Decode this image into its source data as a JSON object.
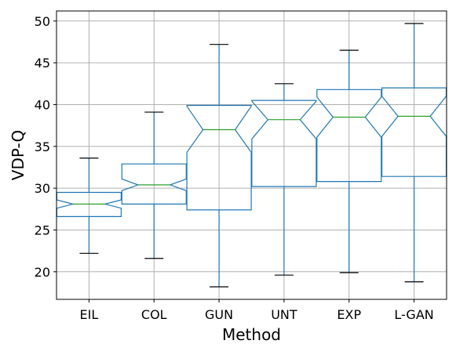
{
  "chart_data": {
    "type": "boxplot",
    "notched": true,
    "xlabel": "Method",
    "ylabel": "VDP-Q",
    "ylim": [
      16.7,
      51.2
    ],
    "yticks": [
      20,
      25,
      30,
      35,
      40,
      45,
      50
    ],
    "grid": true,
    "categories": [
      "EIL",
      "COL",
      "GUN",
      "UNT",
      "EXP",
      "L-GAN"
    ],
    "boxes": [
      {
        "category": "EIL",
        "whisker_low": 22.2,
        "q1": 26.6,
        "median": 28.1,
        "q3": 29.5,
        "whisker_high": 33.6,
        "notch_low": 27.6,
        "notch_high": 28.6
      },
      {
        "category": "COL",
        "whisker_low": 21.6,
        "q1": 28.1,
        "median": 30.4,
        "q3": 32.9,
        "whisker_high": 39.1,
        "notch_low": 29.7,
        "notch_high": 31.1
      },
      {
        "category": "GUN",
        "whisker_low": 18.2,
        "q1": 27.4,
        "median": 37.0,
        "q3": 39.9,
        "whisker_high": 47.2,
        "notch_low": 34.3,
        "notch_high": 39.8
      },
      {
        "category": "UNT",
        "whisker_low": 19.6,
        "q1": 30.2,
        "median": 38.2,
        "q3": 40.5,
        "whisker_high": 42.5,
        "notch_low": 35.9,
        "notch_high": 40.4
      },
      {
        "category": "EXP",
        "whisker_low": 19.9,
        "q1": 30.8,
        "median": 38.5,
        "q3": 41.8,
        "whisker_high": 46.5,
        "notch_low": 36.1,
        "notch_high": 40.9
      },
      {
        "category": "L-GAN",
        "whisker_low": 18.8,
        "q1": 31.4,
        "median": 38.6,
        "q3": 42.0,
        "whisker_high": 49.7,
        "notch_low": 36.2,
        "notch_high": 41.0
      }
    ]
  },
  "colors": {
    "box": "#1f77b4",
    "median": "#2ca02c",
    "whisker": "#1f77b4",
    "cap": "#000000",
    "grid": "#b0b0b0",
    "axes": "#000000"
  }
}
